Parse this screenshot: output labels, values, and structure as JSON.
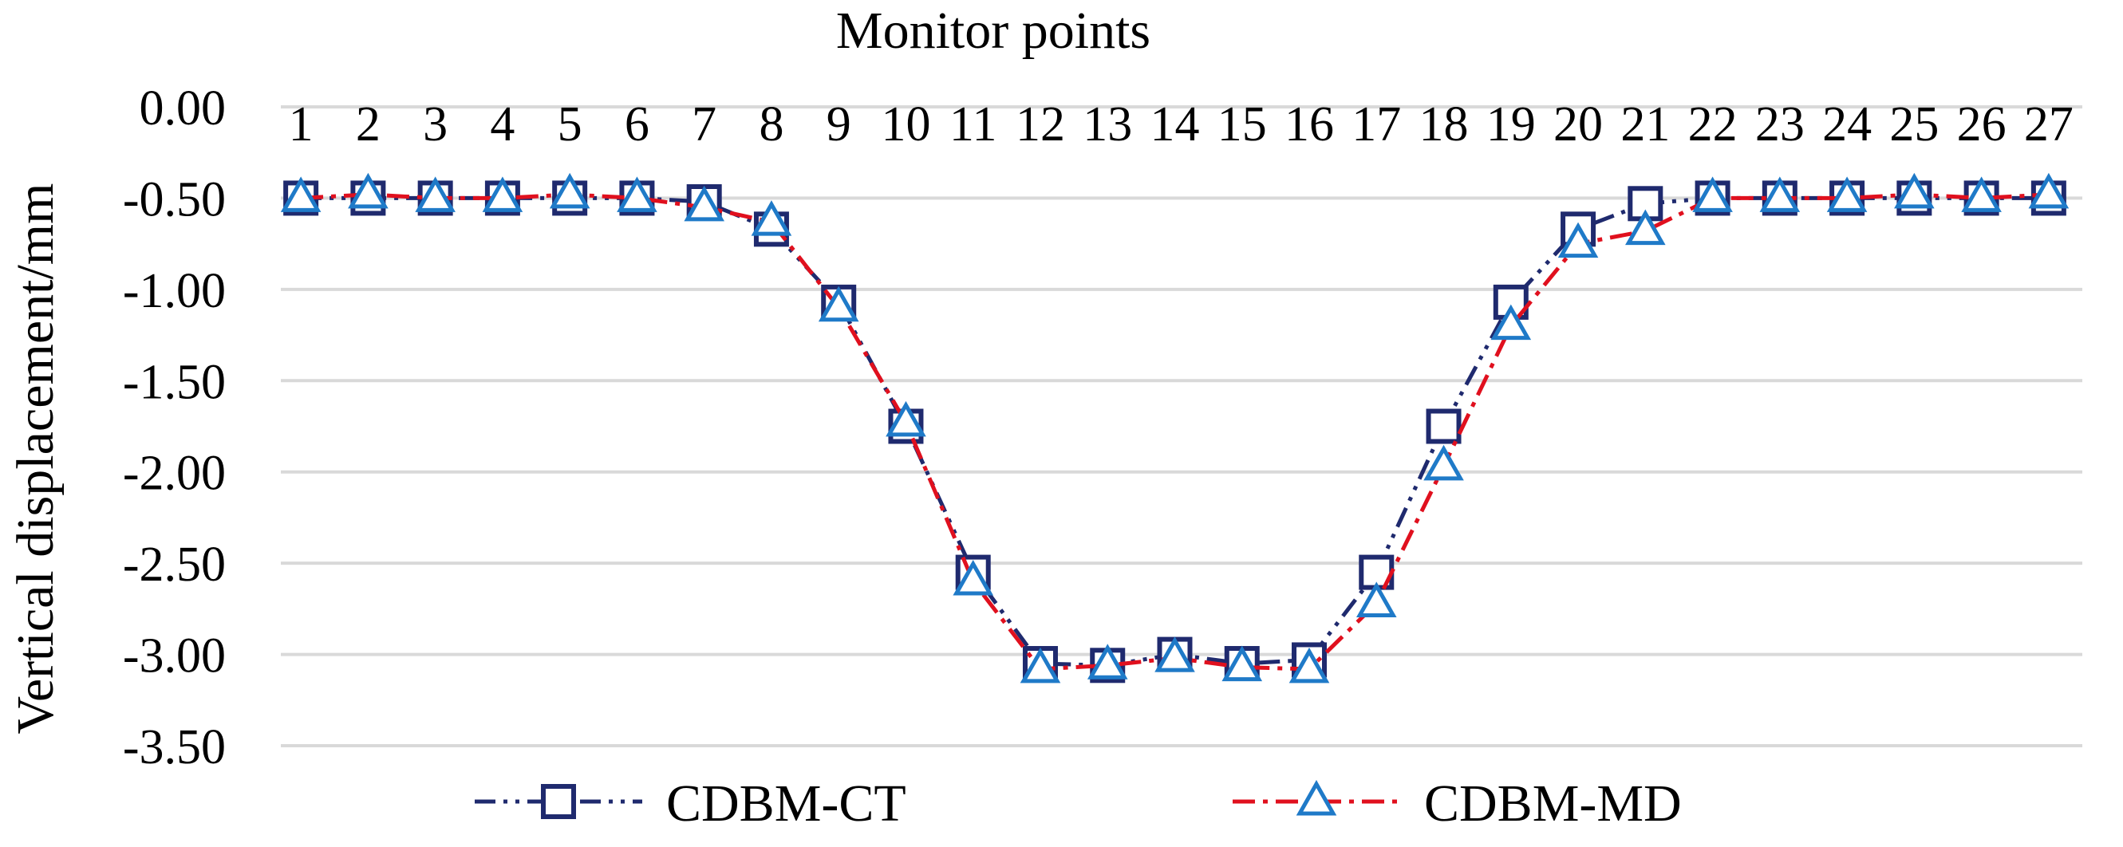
{
  "chart_data": {
    "type": "line",
    "title": "",
    "xlabel": "Monitor points",
    "ylabel": "Vertical  displacement/mm",
    "x": [
      1,
      2,
      3,
      4,
      5,
      6,
      7,
      8,
      9,
      10,
      11,
      12,
      13,
      14,
      15,
      16,
      17,
      18,
      19,
      20,
      21,
      22,
      23,
      24,
      25,
      26,
      27
    ],
    "x_tick_labels": [
      "1",
      "2",
      "3",
      "4",
      "5",
      "6",
      "7",
      "8",
      "9",
      "10",
      "11",
      "12",
      "13",
      "14",
      "15",
      "16",
      "17",
      "18",
      "19",
      "20",
      "21",
      "22",
      "23",
      "24",
      "25",
      "26",
      "27"
    ],
    "y_tick_labels": [
      "0.00",
      "-0.50",
      "-1.00",
      "-1.50",
      "-2.00",
      "-2.50",
      "-3.00",
      "-3.50"
    ],
    "y_ticks": [
      0,
      -0.5,
      -1,
      -1.5,
      -2,
      -2.5,
      -3,
      -3.5
    ],
    "ylim": [
      -3.5,
      0
    ],
    "x_axis_position": "top",
    "grid": true,
    "legend_position": "bottom",
    "series": [
      {
        "name": "CDBM-CT",
        "color": "#1f2a6e",
        "marker": "square",
        "line_style": "dash-dot-dot",
        "values": [
          -0.5,
          -0.5,
          -0.5,
          -0.5,
          -0.5,
          -0.5,
          -0.52,
          -0.67,
          -1.07,
          -1.75,
          -2.55,
          -3.05,
          -3.06,
          -3.0,
          -3.05,
          -3.03,
          -2.55,
          -1.75,
          -1.07,
          -0.67,
          -0.53,
          -0.5,
          -0.5,
          -0.5,
          -0.5,
          -0.5,
          -0.5
        ]
      },
      {
        "name": "CDBM-MD",
        "color": "#e0101e",
        "marker_color": "#1f7ac8",
        "marker": "triangle",
        "line_style": "dash-dot",
        "values": [
          -0.5,
          -0.48,
          -0.5,
          -0.5,
          -0.48,
          -0.5,
          -0.55,
          -0.63,
          -1.1,
          -1.73,
          -2.6,
          -3.08,
          -3.06,
          -3.02,
          -3.07,
          -3.08,
          -2.72,
          -1.97,
          -1.2,
          -0.75,
          -0.68,
          -0.5,
          -0.5,
          -0.5,
          -0.48,
          -0.5,
          -0.48
        ]
      }
    ]
  }
}
